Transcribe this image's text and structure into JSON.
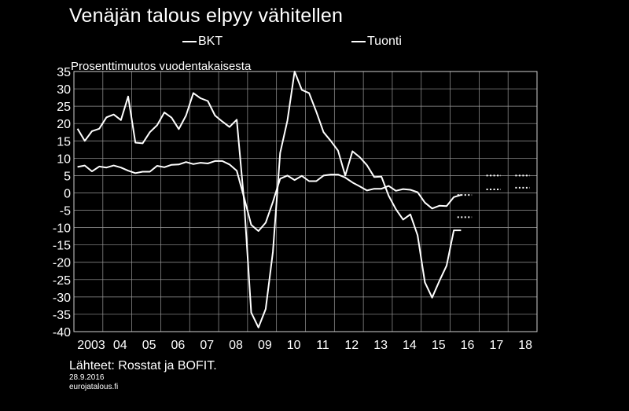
{
  "title": "Venäjän talous elpyy vähitellen",
  "legend": {
    "bkt": "BKT",
    "tuonti": "Tuonti"
  },
  "unit_label": "Prosenttimuutos vuodentakaisesta",
  "source": "Lähteet: Rosstat ja BOFIT.",
  "date": "28.9.2016",
  "site": "eurojatalous.fi",
  "chart_data": {
    "type": "line",
    "xlabel": "",
    "ylabel": "",
    "ylim": [
      -40,
      35
    ],
    "yticks": [
      35,
      30,
      25,
      20,
      15,
      10,
      5,
      0,
      -5,
      -10,
      -15,
      -20,
      -25,
      -30,
      -35,
      -40
    ],
    "xlim": [
      2003,
      2019
    ],
    "xticks": [
      {
        "x": 2003,
        "label": "2003"
      },
      {
        "x": 2004,
        "label": "04"
      },
      {
        "x": 2005,
        "label": "05"
      },
      {
        "x": 2006,
        "label": "06"
      },
      {
        "x": 2007,
        "label": "07"
      },
      {
        "x": 2008,
        "label": "08"
      },
      {
        "x": 2009,
        "label": "09"
      },
      {
        "x": 2010,
        "label": "10"
      },
      {
        "x": 2011,
        "label": "11"
      },
      {
        "x": 2012,
        "label": "12"
      },
      {
        "x": 2013,
        "label": "13"
      },
      {
        "x": 2014,
        "label": "14"
      },
      {
        "x": 2015,
        "label": "15"
      },
      {
        "x": 2016,
        "label": "16"
      },
      {
        "x": 2017,
        "label": "17"
      },
      {
        "x": 2018,
        "label": "18"
      }
    ],
    "grid": true,
    "legend_position": "top",
    "series": [
      {
        "name": "BKT",
        "x": [
          2003.125,
          2003.375,
          2003.625,
          2003.875,
          2004.125,
          2004.375,
          2004.625,
          2004.875,
          2005.125,
          2005.375,
          2005.625,
          2005.875,
          2006.125,
          2006.375,
          2006.625,
          2006.875,
          2007.125,
          2007.375,
          2007.625,
          2007.875,
          2008.125,
          2008.375,
          2008.625,
          2008.875,
          2009.125,
          2009.375,
          2009.625,
          2009.875,
          2010.125,
          2010.375,
          2010.625,
          2010.875,
          2011.125,
          2011.375,
          2011.625,
          2011.875,
          2012.125,
          2012.375,
          2012.625,
          2012.875,
          2013.125,
          2013.375,
          2013.625,
          2013.875,
          2014.125,
          2014.375,
          2014.625,
          2014.875,
          2015.125,
          2015.375,
          2015.625,
          2015.875,
          2016.125,
          2016.375
        ],
        "y": [
          7.5,
          7.9,
          6.2,
          7.6,
          7.3,
          7.9,
          7.3,
          6.4,
          5.7,
          6.1,
          6.1,
          7.8,
          7.4,
          8.1,
          8.2,
          8.9,
          8.3,
          8.7,
          8.5,
          9.2,
          9.2,
          8.2,
          6.4,
          -1.2,
          -9.2,
          -11.0,
          -8.6,
          -2.6,
          4.1,
          5.0,
          3.7,
          4.9,
          3.4,
          3.4,
          5.0,
          5.3,
          5.3,
          4.4,
          3.0,
          1.9,
          0.7,
          1.2,
          1.2,
          2.0,
          0.6,
          1.1,
          0.9,
          0.2,
          -2.8,
          -4.5,
          -3.7,
          -3.8,
          -1.2,
          -0.6
        ]
      },
      {
        "name": "Tuonti",
        "x": [
          2003.125,
          2003.375,
          2003.625,
          2003.875,
          2004.125,
          2004.375,
          2004.625,
          2004.875,
          2005.125,
          2005.375,
          2005.625,
          2005.875,
          2006.125,
          2006.375,
          2006.625,
          2006.875,
          2007.125,
          2007.375,
          2007.625,
          2007.875,
          2008.125,
          2008.375,
          2008.625,
          2008.875,
          2009.125,
          2009.375,
          2009.625,
          2009.875,
          2010.125,
          2010.375,
          2010.625,
          2010.875,
          2011.125,
          2011.375,
          2011.625,
          2011.875,
          2012.125,
          2012.375,
          2012.625,
          2012.875,
          2013.125,
          2013.375,
          2013.625,
          2013.875,
          2014.125,
          2014.375,
          2014.625,
          2014.875,
          2015.125,
          2015.375,
          2015.625,
          2015.875,
          2016.125,
          2016.375
        ],
        "y": [
          18.5,
          15.0,
          17.8,
          18.5,
          21.8,
          22.6,
          21.0,
          27.8,
          14.5,
          14.3,
          17.5,
          19.5,
          23.2,
          21.7,
          18.4,
          22.3,
          28.8,
          27.3,
          26.5,
          22.3,
          20.6,
          19.0,
          21.1,
          -2.0,
          -34.5,
          -38.8,
          -33.5,
          -17.0,
          11.5,
          20.8,
          35.0,
          29.7,
          28.8,
          23.4,
          17.5,
          15.0,
          12.2,
          5.0,
          12.0,
          10.3,
          8.0,
          4.6,
          4.7,
          -0.8,
          -4.7,
          -7.7,
          -6.2,
          -12.2,
          -25.8,
          -30.2,
          -25.4,
          -21.0,
          -10.8,
          -10.8
        ]
      }
    ],
    "forecasts": [
      {
        "series": "BKT",
        "year": 2016,
        "value": -0.6
      },
      {
        "series": "Tuonti",
        "year": 2016,
        "value": -7.0
      },
      {
        "series": "BKT",
        "year": 2017,
        "value": 1.0
      },
      {
        "series": "Tuonti",
        "year": 2017,
        "value": 5.0
      },
      {
        "series": "BKT",
        "year": 2018,
        "value": 1.5
      },
      {
        "series": "Tuonti",
        "year": 2018,
        "value": 5.0
      }
    ]
  }
}
